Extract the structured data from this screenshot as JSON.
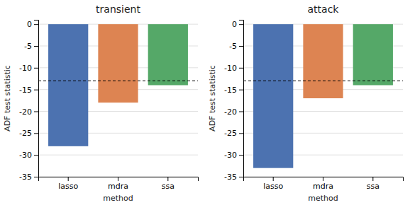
{
  "chart_data": [
    {
      "type": "bar",
      "title": "transient",
      "xlabel": "method",
      "ylabel": "ADF test statistic",
      "categories": [
        "lasso",
        "mdra",
        "ssa"
      ],
      "values": [
        -28.0,
        -18.0,
        -14.0
      ],
      "colors": [
        "#4c72b0",
        "#dd8452",
        "#55a868"
      ],
      "hline": -13.0,
      "ylim": [
        -35,
        1
      ],
      "yticks": [
        0,
        -5,
        -10,
        -15,
        -20,
        -25,
        -30,
        -35
      ],
      "grid": true
    },
    {
      "type": "bar",
      "title": "attack",
      "xlabel": "method",
      "ylabel": "ADF test statistic",
      "categories": [
        "lasso",
        "mdra",
        "ssa"
      ],
      "values": [
        -33.0,
        -17.0,
        -14.0
      ],
      "colors": [
        "#4c72b0",
        "#dd8452",
        "#55a868"
      ],
      "hline": -13.0,
      "ylim": [
        -35,
        1
      ],
      "yticks": [
        0,
        -5,
        -10,
        -15,
        -20,
        -25,
        -30,
        -35
      ],
      "grid": true
    }
  ]
}
